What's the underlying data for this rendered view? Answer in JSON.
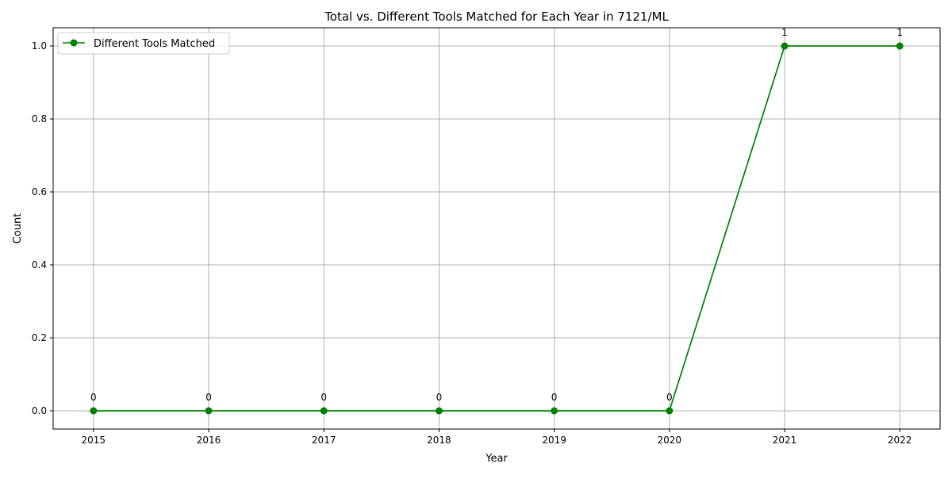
{
  "chart_data": {
    "type": "line",
    "title": "Total vs. Different Tools Matched for Each Year in 7121/ML",
    "xlabel": "Year",
    "ylabel": "Count",
    "x": [
      2015,
      2016,
      2017,
      2018,
      2019,
      2020,
      2021,
      2022
    ],
    "xlim": [
      2014.65,
      2022.35
    ],
    "ylim": [
      -0.05,
      1.05
    ],
    "yticks": [
      0.0,
      0.2,
      0.4,
      0.6,
      0.8,
      1.0
    ],
    "ytick_labels": [
      "0.0",
      "0.2",
      "0.4",
      "0.6",
      "0.8",
      "1.0"
    ],
    "xtick_labels": [
      "2015",
      "2016",
      "2017",
      "2018",
      "2019",
      "2020",
      "2021",
      "2022"
    ],
    "grid": true,
    "legend_position": "top-left",
    "series": [
      {
        "name": "Different Tools Matched",
        "color": "#008000",
        "marker": "circle",
        "values": [
          0,
          0,
          0,
          0,
          0,
          0,
          1,
          1
        ],
        "data_labels": [
          "0",
          "0",
          "0",
          "0",
          "0",
          "0",
          "1",
          "1"
        ]
      }
    ]
  }
}
